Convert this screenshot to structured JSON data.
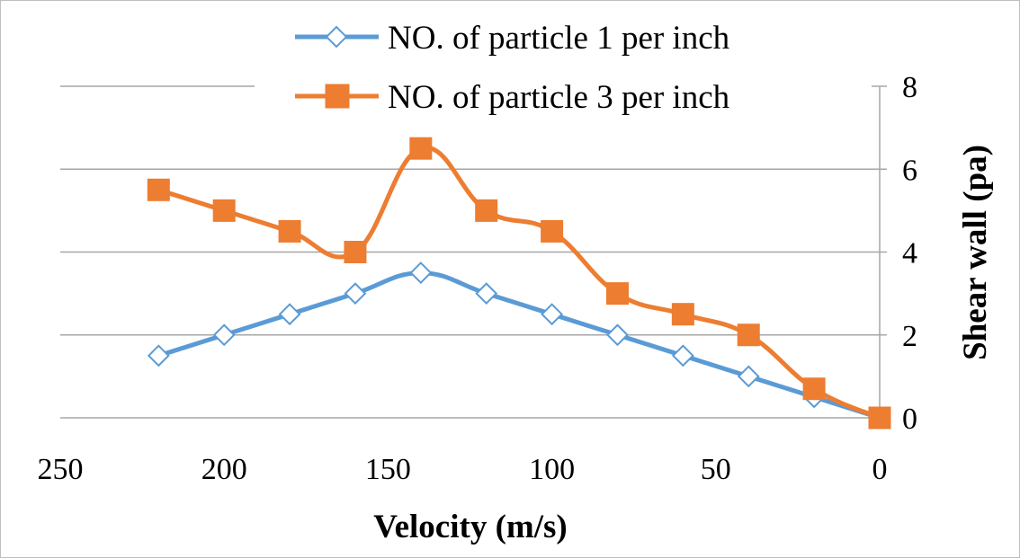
{
  "chart_data": {
    "type": "line",
    "xlabel": "Velocity (m/s)",
    "ylabel": "Shear wall  (pa)",
    "x_reversed": true,
    "xlim": [
      0,
      250
    ],
    "ylim": [
      0,
      8
    ],
    "x_ticks": [
      "250",
      "200",
      "150",
      "100",
      "50",
      "0"
    ],
    "y_ticks": [
      "0",
      "2",
      "4",
      "6",
      "8"
    ],
    "y_axis_side": "right",
    "grid": "horizontal",
    "legend_position": "top",
    "series": [
      {
        "name": "NO. of particle 1 per inch",
        "color": "#5b9bd5",
        "marker": "diamond-open",
        "points": [
          {
            "x": 220,
            "y": 1.5
          },
          {
            "x": 200,
            "y": 2.0
          },
          {
            "x": 180,
            "y": 2.5
          },
          {
            "x": 160,
            "y": 3.0
          },
          {
            "x": 140,
            "y": 3.5
          },
          {
            "x": 120,
            "y": 3.0
          },
          {
            "x": 100,
            "y": 2.5
          },
          {
            "x": 80,
            "y": 2.0
          },
          {
            "x": 60,
            "y": 1.5
          },
          {
            "x": 40,
            "y": 1.0
          },
          {
            "x": 20,
            "y": 0.5
          },
          {
            "x": 0,
            "y": 0.0
          }
        ]
      },
      {
        "name": "NO. of particle 3 per inch",
        "color": "#ed7d31",
        "marker": "square",
        "points": [
          {
            "x": 220,
            "y": 5.5
          },
          {
            "x": 200,
            "y": 5.0
          },
          {
            "x": 180,
            "y": 4.5
          },
          {
            "x": 160,
            "y": 4.0
          },
          {
            "x": 140,
            "y": 6.5
          },
          {
            "x": 120,
            "y": 5.0
          },
          {
            "x": 100,
            "y": 4.5
          },
          {
            "x": 80,
            "y": 3.0
          },
          {
            "x": 60,
            "y": 2.5
          },
          {
            "x": 40,
            "y": 2.0
          },
          {
            "x": 20,
            "y": 0.7
          },
          {
            "x": 0,
            "y": 0.0
          }
        ]
      }
    ]
  }
}
